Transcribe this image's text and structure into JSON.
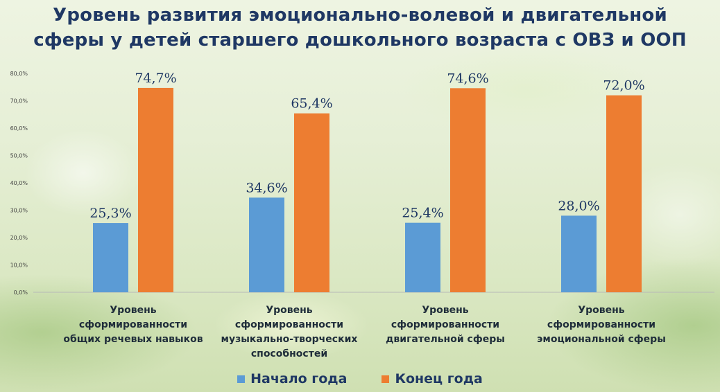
{
  "title": {
    "line1": "Уровень развития эмоционально-волевой и двигательной",
    "line2": "сферы у детей старшего дошкольного возраста с ОВЗ и ООП"
  },
  "chart_data": {
    "type": "bar",
    "categories": [
      [
        "Уровень",
        "сформированности",
        "общих речевых навыков"
      ],
      [
        "Уровень",
        "сформированности",
        "музыкально-творческих",
        "способностей"
      ],
      [
        "Уровень",
        "сформированности",
        "двигательной сферы"
      ],
      [
        "Уровень",
        "сформированности",
        "эмоциональной сферы"
      ]
    ],
    "series": [
      {
        "name": "Начало года",
        "color": "#5b9bd5",
        "values": [
          25.3,
          34.6,
          25.4,
          28.0
        ],
        "labels": [
          "25,3%",
          "34,6%",
          "25,4%",
          "28,0%"
        ]
      },
      {
        "name": "Конец года",
        "color": "#ed7d31",
        "values": [
          74.7,
          65.4,
          74.6,
          72.0
        ],
        "labels": [
          "74,7%",
          "65,4%",
          "74,6%",
          "72,0%"
        ]
      }
    ],
    "ylim": [
      0,
      80
    ],
    "yticks": [
      "0,0%",
      "10,0%",
      "20,0%",
      "30,0%",
      "40,0%",
      "50,0%",
      "60,0%",
      "70,0%",
      "80,0%"
    ],
    "grid": false,
    "legend_position": "bottom"
  }
}
